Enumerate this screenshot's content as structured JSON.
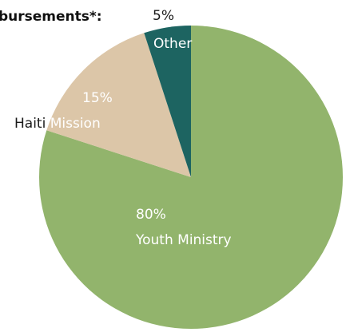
{
  "chart_data": {
    "type": "pie",
    "title": "bursements*:",
    "slices": [
      {
        "label": "Youth Ministry",
        "value": 80,
        "percent_label": "80%",
        "color": "#92b46c"
      },
      {
        "label": "Haiti Mission",
        "value": 15,
        "percent_label": "15%",
        "color": "#dcc6a8"
      },
      {
        "label": "Other",
        "value": 5,
        "percent_label": "5%",
        "color": "#1d6461"
      }
    ]
  }
}
